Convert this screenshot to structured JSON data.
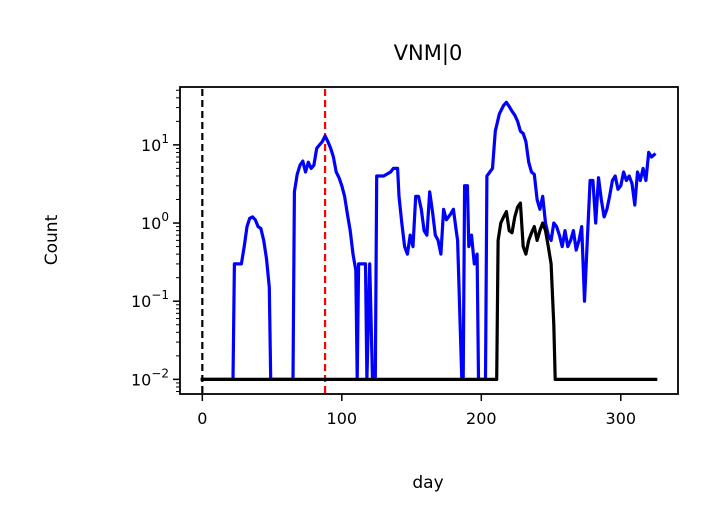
{
  "chart_data": {
    "type": "line",
    "title": "VNM|0",
    "xlabel": "day",
    "ylabel": "Count",
    "xlim": [
      -16,
      341
    ],
    "ylim": [
      0.0065,
      55
    ],
    "yscale": "log",
    "grid": false,
    "x_ticks": [
      {
        "value": 0,
        "label": "0"
      },
      {
        "value": 100,
        "label": "100"
      },
      {
        "value": 200,
        "label": "200"
      },
      {
        "value": 300,
        "label": "300"
      }
    ],
    "y_ticks": [
      {
        "value": 0.01,
        "base": "10",
        "exp": "−2"
      },
      {
        "value": 0.1,
        "base": "10",
        "exp": "−1"
      },
      {
        "value": 1,
        "base": "10",
        "exp": "0"
      },
      {
        "value": 10,
        "base": "10",
        "exp": "1"
      }
    ],
    "vlines": [
      {
        "x": 0,
        "color": "#000000",
        "style": "dashed"
      },
      {
        "x": 88,
        "color": "#ff0000",
        "style": "dashed"
      }
    ],
    "series": [
      {
        "color": "#0000ff",
        "points": [
          [
            0,
            0.01
          ],
          [
            22,
            0.01
          ],
          [
            23,
            0.3
          ],
          [
            28,
            0.3
          ],
          [
            30,
            0.5
          ],
          [
            32,
            0.9
          ],
          [
            34,
            1.15
          ],
          [
            36,
            1.2
          ],
          [
            38,
            1.1
          ],
          [
            40,
            0.9
          ],
          [
            42,
            0.85
          ],
          [
            44,
            0.6
          ],
          [
            46,
            0.35
          ],
          [
            48,
            0.15
          ],
          [
            49,
            0.01
          ],
          [
            65,
            0.01
          ],
          [
            66,
            2.5
          ],
          [
            68,
            4.2
          ],
          [
            70,
            5.5
          ],
          [
            72,
            6.2
          ],
          [
            74,
            4.5
          ],
          [
            76,
            6
          ],
          [
            78,
            5
          ],
          [
            80,
            5.5
          ],
          [
            82,
            9
          ],
          [
            84,
            10
          ],
          [
            86,
            11
          ],
          [
            88,
            13
          ],
          [
            90,
            11
          ],
          [
            92,
            9
          ],
          [
            94,
            7
          ],
          [
            96,
            4.5
          ],
          [
            98,
            3.8
          ],
          [
            100,
            3
          ],
          [
            102,
            2.2
          ],
          [
            104,
            1.3
          ],
          [
            106,
            0.8
          ],
          [
            108,
            0.4
          ],
          [
            110,
            0.25
          ],
          [
            111,
            0.01
          ],
          [
            112,
            0.3
          ],
          [
            117,
            0.3
          ],
          [
            118,
            0.01
          ],
          [
            120,
            0.3
          ],
          [
            122,
            0.01
          ],
          [
            124,
            0.01
          ],
          [
            125,
            4
          ],
          [
            130,
            4
          ],
          [
            135,
            4.5
          ],
          [
            137,
            5
          ],
          [
            140,
            5
          ],
          [
            141,
            2.2
          ],
          [
            143,
            1
          ],
          [
            145,
            0.5
          ],
          [
            147,
            0.4
          ],
          [
            149,
            0.7
          ],
          [
            151,
            0.5
          ],
          [
            153,
            2.2
          ],
          [
            155,
            2.2
          ],
          [
            157,
            1.5
          ],
          [
            159,
            0.8
          ],
          [
            161,
            0.7
          ],
          [
            163,
            2.5
          ],
          [
            165,
            1.4
          ],
          [
            167,
            0.7
          ],
          [
            169,
            0.6
          ],
          [
            171,
            0.4
          ],
          [
            173,
            1.5
          ],
          [
            175,
            1.1
          ],
          [
            178,
            1.3
          ],
          [
            180,
            1.5
          ],
          [
            182,
            0.8
          ],
          [
            183,
            0.6
          ],
          [
            186,
            0.01
          ],
          [
            187,
            0.01
          ],
          [
            188,
            3
          ],
          [
            190,
            3
          ],
          [
            191,
            0.5
          ],
          [
            193,
            0.7
          ],
          [
            195,
            0.3
          ],
          [
            197,
            0.4
          ],
          [
            198,
            0.01
          ],
          [
            203,
            0.01
          ],
          [
            204,
            4
          ],
          [
            208,
            5
          ],
          [
            210,
            15
          ],
          [
            213,
            25
          ],
          [
            216,
            32
          ],
          [
            218,
            35
          ],
          [
            220,
            31
          ],
          [
            222,
            27
          ],
          [
            224,
            24
          ],
          [
            226,
            20
          ],
          [
            228,
            15
          ],
          [
            230,
            14
          ],
          [
            232,
            11
          ],
          [
            234,
            6
          ],
          [
            236,
            4.5
          ],
          [
            238,
            4.2
          ],
          [
            240,
            2
          ],
          [
            242,
            1.5
          ],
          [
            244,
            2.2
          ],
          [
            246,
            1
          ],
          [
            248,
            0.7
          ],
          [
            250,
            0.6
          ],
          [
            252,
            1
          ],
          [
            254,
            0.9
          ],
          [
            256,
            0.7
          ],
          [
            258,
            0.5
          ],
          [
            260,
            0.8
          ],
          [
            262,
            0.5
          ],
          [
            264,
            0.6
          ],
          [
            266,
            0.8
          ],
          [
            268,
            0.45
          ],
          [
            270,
            0.6
          ],
          [
            272,
            0.9
          ],
          [
            274,
            0.1
          ],
          [
            276,
            0.6
          ],
          [
            278,
            3.5
          ],
          [
            280,
            3.5
          ],
          [
            282,
            1
          ],
          [
            284,
            3.8
          ],
          [
            286,
            2
          ],
          [
            288,
            1.2
          ],
          [
            290,
            1.5
          ],
          [
            292,
            2.2
          ],
          [
            294,
            3.5
          ],
          [
            296,
            4
          ],
          [
            298,
            2.7
          ],
          [
            300,
            3
          ],
          [
            302,
            4.5
          ],
          [
            304,
            3.5
          ],
          [
            306,
            4
          ],
          [
            308,
            3.2
          ],
          [
            310,
            1.7
          ],
          [
            312,
            4.5
          ],
          [
            314,
            3.5
          ],
          [
            316,
            5
          ],
          [
            318,
            3.5
          ],
          [
            320,
            8
          ],
          [
            322,
            7
          ],
          [
            324,
            7.5
          ]
        ]
      },
      {
        "color": "#000000",
        "points": [
          [
            0,
            0.01
          ],
          [
            211,
            0.01
          ],
          [
            212,
            0.6
          ],
          [
            214,
            1
          ],
          [
            216,
            1.2
          ],
          [
            218,
            1.4
          ],
          [
            220,
            0.8
          ],
          [
            222,
            0.75
          ],
          [
            224,
            1.2
          ],
          [
            226,
            1.6
          ],
          [
            228,
            1.8
          ],
          [
            230,
            0.5
          ],
          [
            232,
            0.4
          ],
          [
            234,
            0.6
          ],
          [
            236,
            0.75
          ],
          [
            238,
            0.9
          ],
          [
            240,
            0.6
          ],
          [
            242,
            0.8
          ],
          [
            244,
            1
          ],
          [
            246,
            0.8
          ],
          [
            248,
            0.5
          ],
          [
            250,
            0.3
          ],
          [
            252,
            0.05
          ],
          [
            253,
            0.01
          ],
          [
            325,
            0.01
          ]
        ]
      }
    ]
  }
}
